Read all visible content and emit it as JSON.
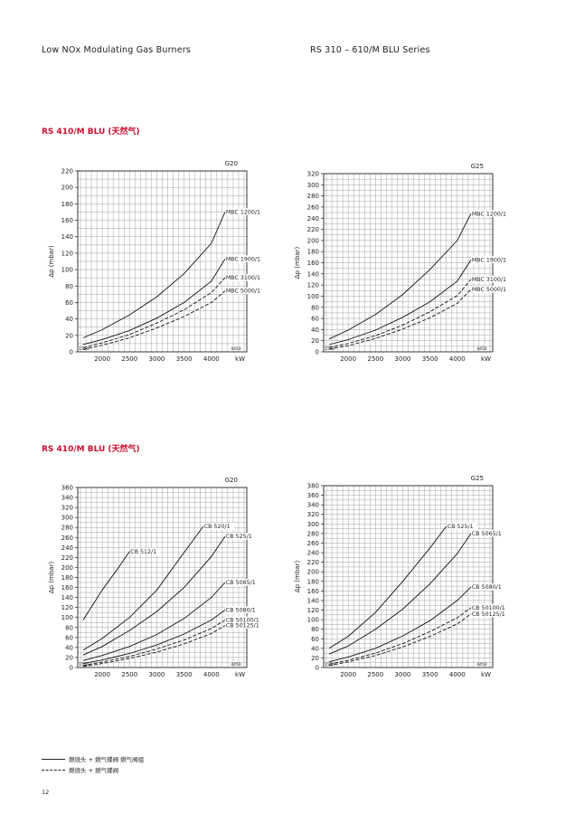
{
  "header": {
    "left": "Low NOx Modulating Gas Burners",
    "right": "RS 310 – 610/M BLU Series"
  },
  "sections": [
    {
      "title": "RS 410/M BLU (天然气)"
    },
    {
      "title": "RS 410/M BLU (天然气)"
    }
  ],
  "legend": {
    "solid": "燃烧头 + 燃气蝶阀    燃气阀组",
    "dashed": "燃烧头 + 燃气蝶阀"
  },
  "page_number": "12",
  "chart_data": [
    {
      "type": "line",
      "title": "G20",
      "xlabel": "kW",
      "ylabel": "Δp (mbar)",
      "xlim": [
        1550,
        4650
      ],
      "ylim": [
        0,
        220
      ],
      "xticks": [
        2000,
        2500,
        3000,
        3500,
        4000
      ],
      "yticks": [
        0,
        20,
        40,
        60,
        80,
        100,
        120,
        140,
        160,
        180,
        200,
        220
      ],
      "xmin_label": "1550",
      "xmax_label": "4450",
      "series": [
        {
          "name": "MBC 1200/1",
          "dash": false,
          "x": [
            1650,
            2000,
            2500,
            3000,
            3500,
            4000,
            4250
          ],
          "y": [
            17,
            27,
            45,
            67,
            95,
            132,
            170
          ]
        },
        {
          "name": "MBC 1900/1",
          "dash": false,
          "x": [
            1650,
            2000,
            2500,
            3000,
            3500,
            4000,
            4250
          ],
          "y": [
            9,
            15,
            26,
            41,
            60,
            86,
            113
          ]
        },
        {
          "name": "MBC 3100/1",
          "dash": true,
          "x": [
            1650,
            2000,
            2500,
            3000,
            3500,
            4000,
            4250
          ],
          "y": [
            5,
            11,
            21,
            35,
            51,
            72,
            90
          ]
        },
        {
          "name": "MBC 5000/1",
          "dash": true,
          "x": [
            1650,
            2000,
            2500,
            3000,
            3500,
            4000,
            4250
          ],
          "y": [
            3,
            8,
            17,
            29,
            43,
            60,
            74
          ]
        }
      ]
    },
    {
      "type": "line",
      "title": "G25",
      "xlabel": "kW",
      "ylabel": "Δp (mbar)",
      "xlim": [
        1550,
        4650
      ],
      "ylim": [
        0,
        320
      ],
      "xticks": [
        2000,
        2500,
        3000,
        3500,
        4000
      ],
      "yticks": [
        0,
        20,
        40,
        60,
        80,
        100,
        120,
        140,
        160,
        180,
        200,
        220,
        240,
        260,
        280,
        300,
        320
      ],
      "xmin_label": "1550",
      "xmax_label": "4450",
      "series": [
        {
          "name": "MBC 1200/1",
          "dash": false,
          "x": [
            1650,
            2000,
            2500,
            3000,
            3500,
            4000,
            4250
          ],
          "y": [
            23,
            39,
            67,
            103,
            148,
            200,
            248
          ]
        },
        {
          "name": "MBC 1900/1",
          "dash": false,
          "x": [
            1650,
            2000,
            2500,
            3000,
            3500,
            4000,
            4250
          ],
          "y": [
            13,
            22,
            39,
            62,
            90,
            127,
            165
          ]
        },
        {
          "name": "MBC 3100/1",
          "dash": true,
          "x": [
            1650,
            2000,
            2500,
            3000,
            3500,
            4000,
            4250
          ],
          "y": [
            8,
            15,
            29,
            48,
            72,
            101,
            130
          ]
        },
        {
          "name": "MBC 5000/1",
          "dash": true,
          "x": [
            1650,
            2000,
            2500,
            3000,
            3500,
            4000,
            4250
          ],
          "y": [
            5,
            11,
            24,
            41,
            61,
            87,
            112
          ]
        }
      ]
    },
    {
      "type": "line",
      "title": "G20",
      "xlabel": "kW",
      "ylabel": "Δp (mbar)",
      "xlim": [
        1550,
        4650
      ],
      "ylim": [
        0,
        360
      ],
      "xticks": [
        2000,
        2500,
        3000,
        3500,
        4000
      ],
      "yticks": [
        0,
        20,
        40,
        60,
        80,
        100,
        120,
        140,
        160,
        180,
        200,
        220,
        240,
        260,
        280,
        300,
        320,
        340,
        360
      ],
      "xmin_label": "1550",
      "xmax_label": "4450",
      "series": [
        {
          "name": "CB 512/1",
          "dash": false,
          "x": [
            1650,
            2000,
            2300,
            2500
          ],
          "y": [
            95,
            155,
            200,
            232
          ]
        },
        {
          "name": "CB 520/1",
          "dash": false,
          "x": [
            1650,
            2000,
            2500,
            3000,
            3500,
            3850
          ],
          "y": [
            35,
            58,
            100,
            155,
            230,
            282
          ]
        },
        {
          "name": "CB 525/1",
          "dash": false,
          "x": [
            1650,
            2000,
            2500,
            3000,
            3500,
            4000,
            4250
          ],
          "y": [
            25,
            42,
            74,
            112,
            160,
            222,
            262
          ]
        },
        {
          "name": "CB 5065/1",
          "dash": false,
          "x": [
            1650,
            2000,
            2500,
            3000,
            3500,
            4000,
            4250
          ],
          "y": [
            14,
            24,
            42,
            66,
            98,
            140,
            170
          ]
        },
        {
          "name": "CB 5080/1",
          "dash": false,
          "x": [
            1650,
            2000,
            2500,
            3000,
            3500,
            4000,
            4250
          ],
          "y": [
            8,
            15,
            28,
            45,
            67,
            95,
            115
          ]
        },
        {
          "name": "CB 50100/1",
          "dash": true,
          "x": [
            1650,
            2000,
            2500,
            3000,
            3500,
            4000,
            4250
          ],
          "y": [
            4,
            11,
            22,
            37,
            55,
            78,
            95
          ]
        },
        {
          "name": "CB 50125/1",
          "dash": true,
          "x": [
            1650,
            2000,
            2500,
            3000,
            3500,
            4000,
            4250
          ],
          "y": [
            2,
            8,
            18,
            31,
            47,
            68,
            84
          ]
        }
      ]
    },
    {
      "type": "line",
      "title": "G25",
      "xlabel": "kW",
      "ylabel": "Δp (mbar)",
      "xlim": [
        1550,
        4650
      ],
      "ylim": [
        0,
        380
      ],
      "xticks": [
        2000,
        2500,
        3000,
        3500,
        4000
      ],
      "yticks": [
        0,
        20,
        40,
        60,
        80,
        100,
        120,
        140,
        160,
        180,
        200,
        220,
        240,
        260,
        280,
        300,
        320,
        340,
        360,
        380
      ],
      "xmin_label": "1550",
      "xmax_label": "4450",
      "series": [
        {
          "name": "CB 525/1",
          "dash": false,
          "x": [
            1650,
            2000,
            2500,
            3000,
            3500,
            3800
          ],
          "y": [
            40,
            65,
            115,
            180,
            250,
            295
          ]
        },
        {
          "name": "CB 5065/1",
          "dash": false,
          "x": [
            1650,
            2000,
            2500,
            3000,
            3500,
            4000,
            4250
          ],
          "y": [
            28,
            45,
            80,
            122,
            175,
            238,
            280
          ]
        },
        {
          "name": "CB 5080/1",
          "dash": false,
          "x": [
            1650,
            2000,
            2500,
            3000,
            3500,
            4000,
            4250
          ],
          "y": [
            12,
            22,
            40,
            66,
            98,
            140,
            168
          ]
        },
        {
          "name": "CB 50100/1",
          "dash": true,
          "x": [
            1650,
            2000,
            2500,
            3000,
            3500,
            4000,
            4250
          ],
          "y": [
            7,
            15,
            30,
            50,
            75,
            104,
            125
          ]
        },
        {
          "name": "CB 50125/1",
          "dash": true,
          "x": [
            1650,
            2000,
            2500,
            3000,
            3500,
            4000,
            4250
          ],
          "y": [
            4,
            12,
            25,
            43,
            65,
            91,
            112
          ]
        }
      ]
    }
  ]
}
